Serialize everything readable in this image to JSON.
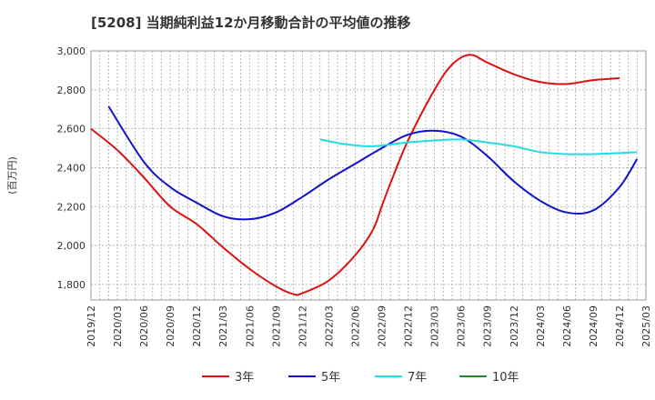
{
  "title": "[5208]  当期純利益12か月移動合計の平均値の推移",
  "chart_data": {
    "type": "line",
    "title": "[5208]  当期純利益12か月移動合計の平均値の推移",
    "ylabel": "(百万円)",
    "xlabel": "",
    "ylim": [
      1720,
      3000
    ],
    "y_ticks": [
      1800,
      2000,
      2200,
      2400,
      2600,
      2800,
      3000
    ],
    "y_tick_labels": [
      "1,800",
      "2,000",
      "2,200",
      "2,400",
      "2,600",
      "2,800",
      "3,000"
    ],
    "x_ticks": [
      "2019/12",
      "2020/03",
      "2020/06",
      "2020/09",
      "2020/12",
      "2021/03",
      "2021/06",
      "2021/09",
      "2021/12",
      "2022/03",
      "2022/06",
      "2022/09",
      "2022/12",
      "2023/03",
      "2023/06",
      "2023/09",
      "2023/12",
      "2024/03",
      "2024/06",
      "2024/09",
      "2024/12",
      "2025/03"
    ],
    "grid": true,
    "legend_position": "bottom",
    "series": [
      {
        "name": "3年",
        "color": "#dd1111",
        "points": [
          [
            "2019/12",
            2600
          ],
          [
            "2020/03",
            2490
          ],
          [
            "2020/06",
            2350
          ],
          [
            "2020/09",
            2200
          ],
          [
            "2020/12",
            2110
          ],
          [
            "2021/03",
            1990
          ],
          [
            "2021/06",
            1880
          ],
          [
            "2021/09",
            1790
          ],
          [
            "2021/11",
            1750
          ],
          [
            "2021/12",
            1755
          ],
          [
            "2022/03",
            1820
          ],
          [
            "2022/06",
            1950
          ],
          [
            "2022/08",
            2080
          ],
          [
            "2022/09",
            2200
          ],
          [
            "2022/10",
            2320
          ],
          [
            "2022/12",
            2540
          ],
          [
            "2023/03",
            2800
          ],
          [
            "2023/05",
            2930
          ],
          [
            "2023/07",
            2980
          ],
          [
            "2023/09",
            2940
          ],
          [
            "2023/12",
            2880
          ],
          [
            "2024/03",
            2840
          ],
          [
            "2024/06",
            2830
          ],
          [
            "2024/09",
            2850
          ],
          [
            "2024/12",
            2860
          ]
        ]
      },
      {
        "name": "5年",
        "color": "#1111cc",
        "points": [
          [
            "2020/02",
            2715
          ],
          [
            "2020/06",
            2430
          ],
          [
            "2020/09",
            2300
          ],
          [
            "2020/12",
            2220
          ],
          [
            "2021/03",
            2150
          ],
          [
            "2021/06",
            2135
          ],
          [
            "2021/09",
            2170
          ],
          [
            "2021/12",
            2250
          ],
          [
            "2022/03",
            2340
          ],
          [
            "2022/06",
            2420
          ],
          [
            "2022/09",
            2500
          ],
          [
            "2022/12",
            2570
          ],
          [
            "2023/03",
            2590
          ],
          [
            "2023/06",
            2560
          ],
          [
            "2023/09",
            2460
          ],
          [
            "2023/12",
            2330
          ],
          [
            "2024/03",
            2230
          ],
          [
            "2024/06",
            2170
          ],
          [
            "2024/09",
            2180
          ],
          [
            "2024/12",
            2300
          ],
          [
            "2025/02",
            2445
          ]
        ]
      },
      {
        "name": "7年",
        "color": "#22dddd",
        "points": [
          [
            "2022/02",
            2545
          ],
          [
            "2022/05",
            2520
          ],
          [
            "2022/08",
            2510
          ],
          [
            "2022/12",
            2530
          ],
          [
            "2023/03",
            2540
          ],
          [
            "2023/06",
            2545
          ],
          [
            "2023/09",
            2530
          ],
          [
            "2023/12",
            2510
          ],
          [
            "2024/03",
            2480
          ],
          [
            "2024/06",
            2470
          ],
          [
            "2024/09",
            2470
          ],
          [
            "2024/12",
            2475
          ],
          [
            "2025/02",
            2480
          ]
        ]
      },
      {
        "name": "10年",
        "color": "#228822",
        "points": []
      }
    ]
  }
}
